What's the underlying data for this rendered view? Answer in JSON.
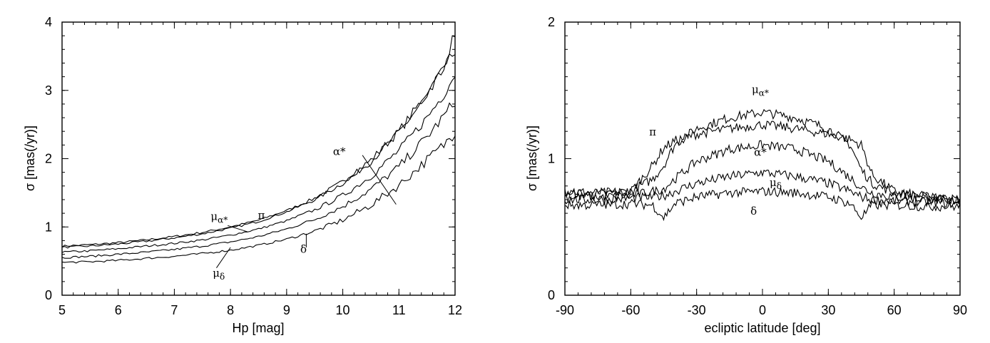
{
  "chart_data": [
    {
      "type": "line",
      "xlabel": "Hp [mag]",
      "ylabel": "σ [mas(/yr)]",
      "xlim": [
        5,
        12
      ],
      "ylim": [
        0,
        4
      ],
      "x_ticks": [
        "5",
        "6",
        "7",
        "8",
        "9",
        "10",
        "11",
        "12"
      ],
      "y_ticks": [
        "0",
        "1",
        "2",
        "3",
        "4"
      ],
      "grid": false,
      "x": [
        5,
        5.5,
        6,
        6.5,
        7,
        7.5,
        8,
        8.5,
        9,
        9.5,
        10,
        10.5,
        11,
        11.5,
        11.8,
        12
      ],
      "series": [
        {
          "name": "μα*",
          "values": [
            0.72,
            0.74,
            0.77,
            0.81,
            0.86,
            0.92,
            1.0,
            1.1,
            1.24,
            1.42,
            1.66,
            1.98,
            2.4,
            2.95,
            3.35,
            3.85
          ]
        },
        {
          "name": "π",
          "values": [
            0.7,
            0.72,
            0.75,
            0.79,
            0.84,
            0.9,
            0.98,
            1.08,
            1.22,
            1.4,
            1.64,
            1.96,
            2.38,
            2.92,
            3.3,
            3.6
          ]
        },
        {
          "name": "α*",
          "values": [
            0.63,
            0.65,
            0.68,
            0.72,
            0.76,
            0.81,
            0.88,
            0.97,
            1.09,
            1.25,
            1.46,
            1.74,
            2.12,
            2.6,
            2.95,
            3.25
          ]
        },
        {
          "name": "μδ",
          "values": [
            0.55,
            0.57,
            0.6,
            0.63,
            0.67,
            0.72,
            0.78,
            0.86,
            0.97,
            1.11,
            1.3,
            1.55,
            1.88,
            2.32,
            2.62,
            2.85
          ]
        },
        {
          "name": "δ",
          "values": [
            0.48,
            0.49,
            0.51,
            0.54,
            0.57,
            0.61,
            0.66,
            0.73,
            0.82,
            0.94,
            1.1,
            1.32,
            1.61,
            1.98,
            2.2,
            2.4
          ]
        }
      ],
      "labels": [
        {
          "text": "α*",
          "series": "α*"
        },
        {
          "text": "π",
          "series": "π"
        },
        {
          "text": "μα*",
          "series": "μα*"
        },
        {
          "text": "δ",
          "series": "δ"
        },
        {
          "text": "μδ",
          "series": "μδ"
        }
      ]
    },
    {
      "type": "line",
      "xlabel": "ecliptic latitude [deg]",
      "ylabel": "σ [mas(/yr)]",
      "xlim": [
        -90,
        90
      ],
      "ylim": [
        0,
        2
      ],
      "x_ticks": [
        "-90",
        "-60",
        "-30",
        "0",
        "30",
        "60",
        "90"
      ],
      "y_ticks": [
        "0",
        "1",
        "2"
      ],
      "grid": false,
      "x": [
        -90,
        -75,
        -60,
        -50,
        -45,
        -40,
        -30,
        -15,
        0,
        15,
        30,
        40,
        45,
        50,
        60,
        75,
        90
      ],
      "series": [
        {
          "name": "μα*",
          "values": [
            0.76,
            0.75,
            0.76,
            0.85,
            0.95,
            1.1,
            1.22,
            1.3,
            1.34,
            1.3,
            1.22,
            1.1,
            0.92,
            0.82,
            0.75,
            0.72,
            0.7
          ]
        },
        {
          "name": "π",
          "values": [
            0.75,
            0.74,
            0.76,
            0.95,
            1.08,
            1.13,
            1.18,
            1.22,
            1.25,
            1.22,
            1.18,
            1.14,
            1.1,
            0.88,
            0.76,
            0.72,
            0.7
          ]
        },
        {
          "name": "α*",
          "values": [
            0.72,
            0.72,
            0.73,
            0.76,
            0.78,
            0.85,
            0.98,
            1.07,
            1.1,
            1.07,
            0.98,
            0.86,
            0.79,
            0.75,
            0.72,
            0.7,
            0.69
          ]
        },
        {
          "name": "μδ",
          "values": [
            0.7,
            0.7,
            0.71,
            0.72,
            0.73,
            0.76,
            0.82,
            0.87,
            0.9,
            0.87,
            0.82,
            0.76,
            0.72,
            0.7,
            0.69,
            0.68,
            0.67
          ]
        },
        {
          "name": "δ",
          "values": [
            0.66,
            0.66,
            0.67,
            0.66,
            0.57,
            0.67,
            0.72,
            0.75,
            0.76,
            0.75,
            0.72,
            0.67,
            0.57,
            0.66,
            0.66,
            0.65,
            0.65
          ]
        }
      ],
      "labels": [
        {
          "text": "μα*",
          "series": "μα*"
        },
        {
          "text": "π",
          "series": "π"
        },
        {
          "text": "α*",
          "series": "α*"
        },
        {
          "text": "μδ",
          "series": "μδ"
        },
        {
          "text": "δ",
          "series": "δ"
        }
      ]
    }
  ]
}
